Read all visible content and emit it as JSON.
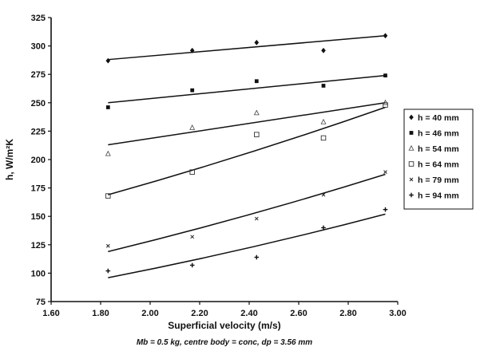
{
  "chart_data": {
    "type": "scatter",
    "title": "",
    "xlabel": "Superficial velocity (m/s)",
    "ylabel": "h, W/m²K",
    "caption": "Mb = 0.5 kg, centre body = conc, dp = 3.56 mm",
    "xlim": [
      1.6,
      3.0
    ],
    "ylim": [
      75,
      325
    ],
    "xticks": [
      "1.60",
      "1.80",
      "2.00",
      "2.20",
      "2.40",
      "2.60",
      "2.80",
      "3.00"
    ],
    "yticks": [
      "75",
      "100",
      "125",
      "150",
      "175",
      "200",
      "225",
      "250",
      "275",
      "300",
      "325"
    ],
    "grid": false,
    "legend_position": "right",
    "series": [
      {
        "name": "h = 40 mm",
        "marker": "diamond",
        "x": [
          1.83,
          2.17,
          2.43,
          2.7,
          2.95
        ],
        "y": [
          287,
          296,
          303,
          296,
          309
        ],
        "fit": [
          288,
          309
        ]
      },
      {
        "name": "h = 46 mm",
        "marker": "square",
        "x": [
          1.83,
          2.17,
          2.43,
          2.7,
          2.95
        ],
        "y": [
          246,
          261,
          269,
          265,
          274
        ],
        "fit": [
          250,
          274
        ]
      },
      {
        "name": "h = 54 mm",
        "marker": "triangle",
        "x": [
          1.83,
          2.17,
          2.43,
          2.7,
          2.95
        ],
        "y": [
          205,
          228,
          241,
          233,
          250
        ],
        "fit": [
          213,
          250
        ]
      },
      {
        "name": "h = 64 mm",
        "marker": "open-square",
        "x": [
          1.83,
          2.17,
          2.43,
          2.7,
          2.95
        ],
        "y": [
          168,
          189,
          222,
          219,
          248
        ],
        "fit": [
          169,
          246
        ]
      },
      {
        "name": "h = 79 mm",
        "marker": "cross",
        "x": [
          1.83,
          2.17,
          2.43,
          2.7,
          2.95
        ],
        "y": [
          124,
          132,
          148,
          169,
          189
        ],
        "fit": [
          119,
          187
        ]
      },
      {
        "name": "h = 94 mm",
        "marker": "plus",
        "x": [
          1.83,
          2.17,
          2.43,
          2.7,
          2.95
        ],
        "y": [
          102,
          107,
          114,
          140,
          156
        ],
        "fit": [
          96,
          152
        ]
      }
    ]
  }
}
